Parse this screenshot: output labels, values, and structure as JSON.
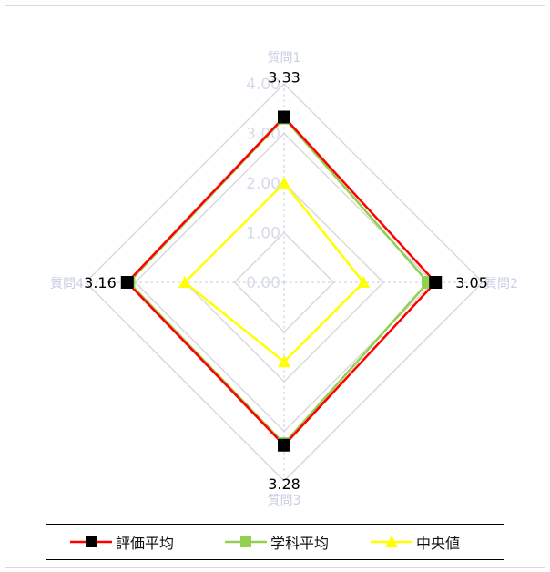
{
  "chart_data": {
    "type": "radar",
    "axes": [
      "質問1",
      "質問2",
      "質問3",
      "質問4"
    ],
    "ticks": [
      "0.00",
      "1.00",
      "2.00",
      "3.00",
      "4.00"
    ],
    "rmin": 0,
    "rmax": 4,
    "grid": true,
    "legend_position": "bottom",
    "series": [
      {
        "name": "評価平均",
        "values": [
          3.33,
          3.05,
          3.28,
          3.16
        ],
        "color": "#ff0000",
        "marker": "square",
        "marker_color": "#000000"
      },
      {
        "name": "学科平均",
        "values": [
          3.31,
          2.9,
          3.25,
          3.13
        ],
        "color": "#92d050",
        "marker": "square",
        "marker_color": "#92d050"
      },
      {
        "name": "中央値",
        "values": [
          2.0,
          1.6,
          1.6,
          2.0
        ],
        "color": "#ffff00",
        "marker": "triangle",
        "marker_color": "#ffff00"
      }
    ],
    "data_labels": [
      "3.33",
      "3.05",
      "3.28",
      "3.16"
    ]
  }
}
